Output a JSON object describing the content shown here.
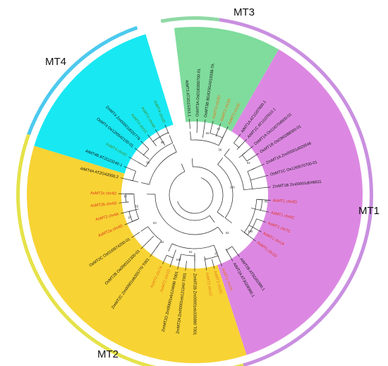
{
  "colors": {
    "mt1_fill": "#dc88e2",
    "mt1_ring": "#c98fe0",
    "mt2_fill": "#f7d334",
    "mt2_ring": "#e5e24a",
    "mt3_fill": "#7fdc9c",
    "mt3_ring": "#8fd9a4",
    "mt4_fill": "#18e8f2",
    "mt4_ring": "#4cc9ee",
    "label_black": "#111111",
    "label_red": "#e0301e",
    "label_orange": "#e8761a",
    "label_green": "#3f8f2a",
    "branch": "#222222"
  },
  "groups": [
    {
      "id": "MT1",
      "label": "MT1",
      "start": 30,
      "end": 162,
      "fill": "#dc88e2",
      "ring": "#c98fe0",
      "ring_start": 8,
      "ring_end": 164
    },
    {
      "id": "MT2",
      "label": "MT2",
      "start": 162,
      "end": 287,
      "fill": "#f7d334",
      "ring": "#e5e24a",
      "ring_start": 164,
      "ring_end": 290
    },
    {
      "id": "MT3",
      "label": "MT3",
      "start": 353,
      "end": 30,
      "fill": "#7fdc9c",
      "ring": "#8fd9a4",
      "ring_start": 349,
      "ring_end": 8
    },
    {
      "id": "MT4",
      "label": "MT4",
      "start": 287,
      "end": 343,
      "fill": "#18e8f2",
      "ring": "#4cc9ee",
      "ring_start": 290,
      "ring_end": 341
    }
  ],
  "leaves": [
    {
      "text": "AtMT3 AT3G15353.1",
      "angle": 356,
      "color": "label_black"
    },
    {
      "text": "OsMT3A Os01t0200700-01",
      "angle": 2,
      "color": "label_black"
    },
    {
      "text": "OsMT3B BGIOSGA019338-TA",
      "angle": 8,
      "color": "label_black"
    },
    {
      "text": "AsMT3 chr3D",
      "angle": 14,
      "color": "label_orange"
    },
    {
      "text": "AsMT3 chr3A",
      "angle": 20,
      "color": "label_orange"
    },
    {
      "text": "AsMT3 chr3C",
      "angle": 26,
      "color": "label_orange"
    },
    {
      "text": "AtMT1A AT1G07600.1",
      "angle": 37,
      "color": "label_black"
    },
    {
      "text": "AtMT1C AT1G07610.1",
      "angle": 43,
      "color": "label_black"
    },
    {
      "text": "OsMT1A Os11t0704500-01",
      "angle": 50,
      "color": "label_black"
    },
    {
      "text": "OsMT1B Os03t0288000-01",
      "angle": 57,
      "color": "label_black"
    },
    {
      "text": "ZmMT1A Zm00001d029546",
      "angle": 66,
      "color": "label_black"
    },
    {
      "text": "OsMT1C Os12t0570700-01",
      "angle": 75,
      "color": "label_black"
    },
    {
      "text": "ZmMT1B Zm00001d048611",
      "angle": 84,
      "color": "label_black"
    },
    {
      "text": "AsMT1 chr4D",
      "angle": 94,
      "color": "label_red"
    },
    {
      "text": "AsMT1 chr6C",
      "angle": 103,
      "color": "label_red"
    },
    {
      "text": "AsMT1 chr7C",
      "angle": 111,
      "color": "label_red"
    },
    {
      "text": "AsMT1 chr1A",
      "angle": 119,
      "color": "label_red"
    },
    {
      "text": "AsMT1 chr1D",
      "angle": 127,
      "color": "label_red"
    },
    {
      "text": "AtMT2B AT5G02380.1",
      "angle": 144,
      "color": "label_black"
    },
    {
      "text": "AtMT2A AT3G09390.1",
      "angle": 150,
      "color": "label_black"
    },
    {
      "text": "AsMT2 chr2A",
      "angle": 159,
      "color": "label_orange"
    },
    {
      "text": "AsMT2 chr2C",
      "angle": 165,
      "color": "label_orange"
    },
    {
      "text": "AsMT2 chr1C",
      "angle": 171,
      "color": "label_orange"
    },
    {
      "text": "ZmMT2B Zm00001eb335880 T001",
      "angle": 180,
      "color": "label_black"
    },
    {
      "text": "ZmMT2A Zm00001eb121340 T001",
      "angle": 187,
      "color": "label_black"
    },
    {
      "text": "ZmMT2D Zm00001eb124690 T001",
      "angle": 193,
      "color": "label_black"
    },
    {
      "text": "AsMT2 chr1D",
      "angle": 199,
      "color": "label_orange"
    },
    {
      "text": "AsMT2 chr7A",
      "angle": 205,
      "color": "label_orange"
    },
    {
      "text": "ZmMT2C Zm00001eb355770 T001",
      "angle": 216,
      "color": "label_black"
    },
    {
      "text": "OsMT2B Os05t0111300-01",
      "angle": 225,
      "color": "label_black"
    },
    {
      "text": "OsMT2C Os01t0974200-01",
      "angle": 236,
      "color": "label_black"
    },
    {
      "text": "AsMT2a chr4D",
      "angle": 247,
      "color": "label_red"
    },
    {
      "text": "AsMT2 chr4A",
      "angle": 256,
      "color": "label_red"
    },
    {
      "text": "AsMT2b chr4D",
      "angle": 264,
      "color": "label_red"
    },
    {
      "text": "AsMT2c chr4D",
      "angle": 271,
      "color": "label_red"
    },
    {
      "text": "AtMT4A AT2G42000.2",
      "angle": 283,
      "color": "label_black"
    },
    {
      "text": "AtMT4B AT2G23240.1",
      "angle": 292,
      "color": "label_black"
    },
    {
      "text": "AsMT4 chr4C",
      "angle": 300,
      "color": "label_green"
    },
    {
      "text": "OsMT4 Os12t0542100-01",
      "angle": 308,
      "color": "label_black"
    },
    {
      "text": "ZmMT4 Zm00001d020779",
      "angle": 315,
      "color": "label_black"
    },
    {
      "text": "AsMT4 chr1C",
      "angle": 322,
      "color": "label_green"
    },
    {
      "text": "AsMT4 chr4A",
      "angle": 329,
      "color": "label_green"
    },
    {
      "text": "AsMT4 chr1D",
      "angle": 337,
      "color": "label_green"
    }
  ],
  "bootstrap": [
    {
      "text": "82",
      "angle": 12,
      "r": 88
    },
    {
      "text": "70",
      "angle": 20,
      "r": 98
    },
    {
      "text": "56",
      "angle": 30,
      "r": 72
    },
    {
      "text": "92",
      "angle": 60,
      "r": 88
    },
    {
      "text": "100",
      "angle": 80,
      "r": 54
    },
    {
      "text": "86",
      "angle": 96,
      "r": 102
    },
    {
      "text": "100",
      "angle": 124,
      "r": 95
    },
    {
      "text": "62",
      "angle": 140,
      "r": 72
    },
    {
      "text": "81",
      "angle": 160,
      "r": 90
    },
    {
      "text": "61",
      "angle": 184,
      "r": 82
    },
    {
      "text": "100",
      "angle": 194,
      "r": 96
    },
    {
      "text": "52",
      "angle": 214,
      "r": 82
    },
    {
      "text": "53",
      "angle": 234,
      "r": 70
    },
    {
      "text": "97",
      "angle": 250,
      "r": 98
    },
    {
      "text": "55",
      "angle": 258,
      "r": 84
    },
    {
      "text": "87",
      "angle": 268,
      "r": 98
    },
    {
      "text": "98",
      "angle": 304,
      "r": 80
    },
    {
      "text": "88",
      "angle": 328,
      "r": 86
    }
  ]
}
